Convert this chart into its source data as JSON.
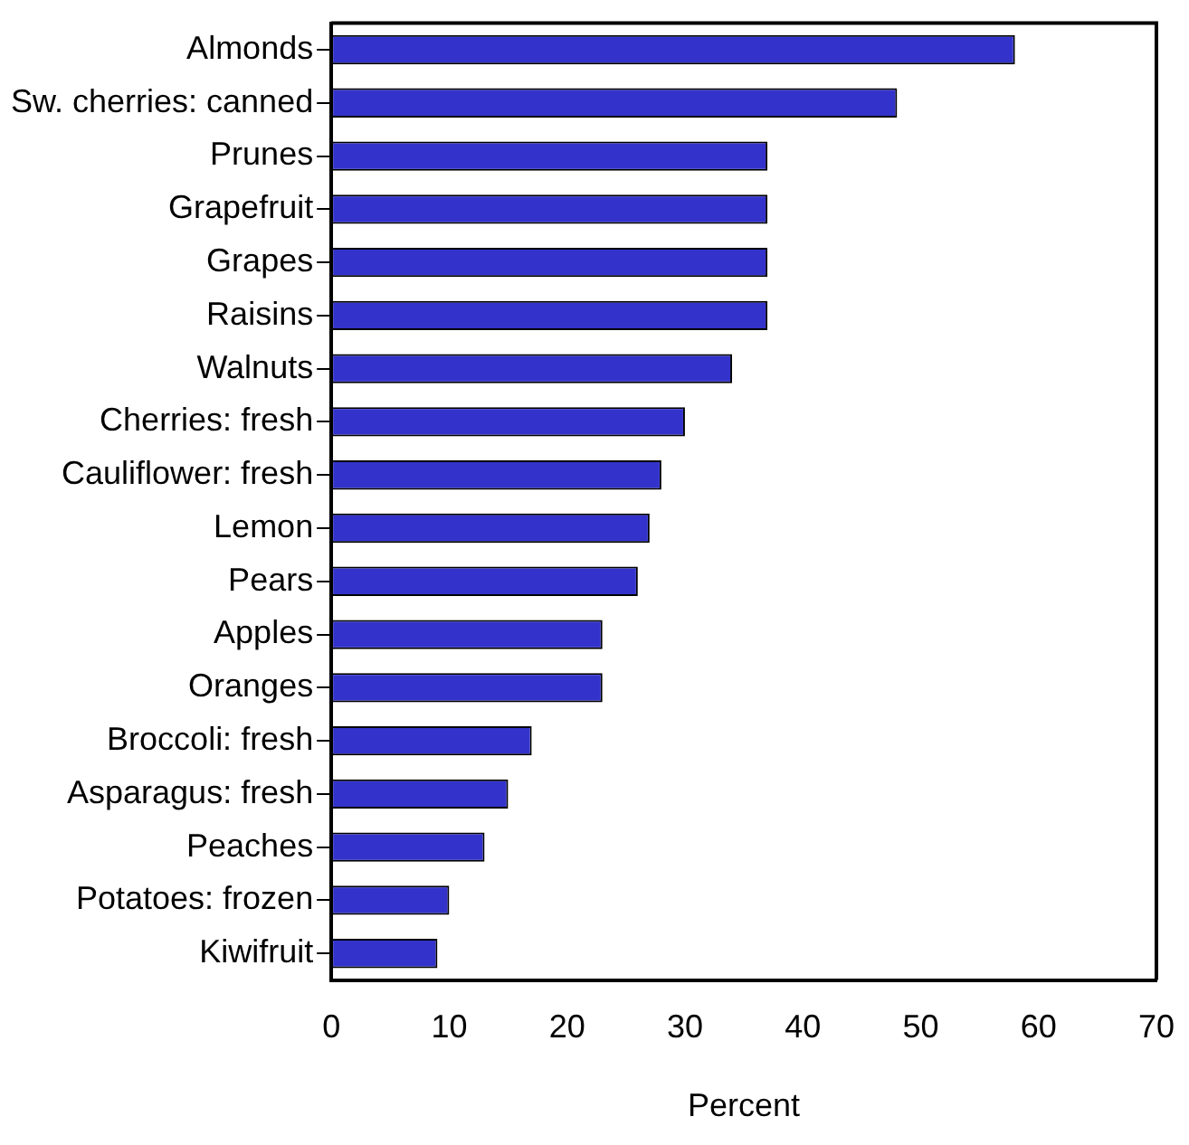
{
  "chart_data": {
    "type": "bar",
    "orientation": "horizontal",
    "xlabel": "Percent",
    "categories": [
      "Almonds",
      "Sw. cherries: canned",
      "Prunes",
      "Grapefruit",
      "Grapes",
      "Raisins",
      "Walnuts",
      "Cherries: fresh",
      "Cauliflower: fresh",
      "Lemon",
      "Pears",
      "Apples",
      "Oranges",
      "Broccoli: fresh",
      "Asparagus: fresh",
      "Peaches",
      "Potatoes: frozen",
      "Kiwifruit"
    ],
    "values": [
      58,
      48,
      37,
      37,
      37,
      37,
      34,
      30,
      28,
      27,
      26,
      23,
      23,
      17,
      15,
      13,
      10,
      9
    ],
    "color": "#3333cc",
    "xlim": [
      0,
      70
    ],
    "xticks": [
      0,
      10,
      20,
      30,
      40,
      50,
      60,
      70
    ],
    "grid": false,
    "legend": false
  }
}
